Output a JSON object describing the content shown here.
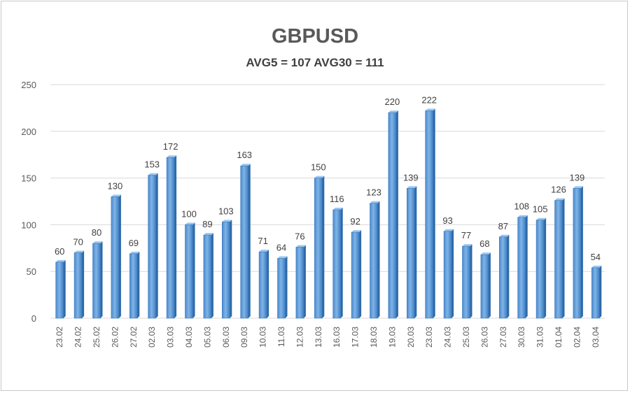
{
  "chart_data": {
    "type": "bar",
    "title": "GBPUSD",
    "subtitle": "AVG5 = 107 AVG30 = 111",
    "xlabel": "",
    "ylabel": "",
    "ylim": [
      0,
      250
    ],
    "yticks": [
      0,
      50,
      100,
      150,
      200,
      250
    ],
    "grid": true,
    "legend": "none",
    "bar_color": "#5b9bd5",
    "categories": [
      "23.02",
      "24.02",
      "25.02",
      "26.02",
      "27.02",
      "02.03",
      "03.03",
      "04.03",
      "05.03",
      "06.03",
      "09.03",
      "10.03",
      "11.03",
      "12.03",
      "13.03",
      "16.03",
      "17.03",
      "18.03",
      "19.03",
      "20.03",
      "23.03",
      "24.03",
      "25.03",
      "26.03",
      "27.03",
      "30.03",
      "31.03",
      "01.04",
      "02.04",
      "03.04"
    ],
    "values": [
      60,
      70,
      80,
      130,
      69,
      153,
      172,
      100,
      89,
      103,
      163,
      71,
      64,
      76,
      150,
      116,
      92,
      123,
      220,
      139,
      222,
      93,
      77,
      68,
      87,
      108,
      105,
      126,
      139,
      54
    ]
  }
}
